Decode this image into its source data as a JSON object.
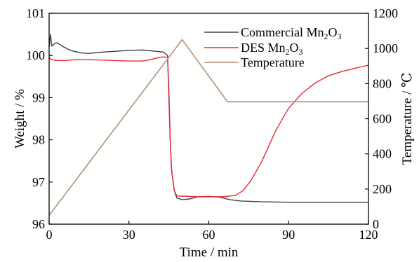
{
  "chart_data": {
    "type": "line",
    "x": {
      "label": "Time / min",
      "range": [
        0,
        120
      ],
      "ticks": [
        0,
        30,
        60,
        90,
        120
      ],
      "tick_labels": [
        "0",
        "30",
        "60",
        "90",
        "120"
      ]
    },
    "y_left": {
      "label": "Weight / %",
      "range": [
        96,
        101
      ],
      "ticks": [
        96,
        97,
        98,
        99,
        100,
        101
      ],
      "tick_labels": [
        "96",
        "97",
        "98",
        "99",
        "100",
        "101"
      ]
    },
    "y_right": {
      "label": "Temperature / ℃",
      "range": [
        0,
        1200
      ],
      "ticks": [
        0,
        200,
        400,
        600,
        800,
        1000,
        1200
      ],
      "tick_labels": [
        "0",
        "200",
        "400",
        "600",
        "800",
        "1000",
        "1200"
      ]
    },
    "legend_position": "top-right",
    "grid": false,
    "series": [
      {
        "name": "Commercial Mn2O3",
        "legend_main": "Commercial Mn",
        "legend_sub1": "2",
        "legend_mid": "O",
        "legend_sub2": "3",
        "axis": "left",
        "color": "#404040",
        "points": [
          [
            0,
            100.2
          ],
          [
            0.5,
            100.5
          ],
          [
            1,
            100.22
          ],
          [
            2,
            100.28
          ],
          [
            3,
            100.3
          ],
          [
            5,
            100.22
          ],
          [
            8,
            100.12
          ],
          [
            12,
            100.06
          ],
          [
            15,
            100.05
          ],
          [
            20,
            100.08
          ],
          [
            25,
            100.1
          ],
          [
            30,
            100.12
          ],
          [
            35,
            100.13
          ],
          [
            40,
            100.1
          ],
          [
            43,
            100.08
          ],
          [
            44.5,
            100.0
          ],
          [
            45,
            99.0
          ],
          [
            45.5,
            98.0
          ],
          [
            46,
            97.3
          ],
          [
            47,
            96.8
          ],
          [
            48,
            96.62
          ],
          [
            50,
            96.58
          ],
          [
            53,
            96.6
          ],
          [
            56,
            96.65
          ],
          [
            60,
            96.66
          ],
          [
            64,
            96.64
          ],
          [
            68,
            96.58
          ],
          [
            72,
            96.55
          ],
          [
            80,
            96.53
          ],
          [
            90,
            96.52
          ],
          [
            100,
            96.52
          ],
          [
            110,
            96.52
          ],
          [
            120,
            96.52
          ]
        ]
      },
      {
        "name": "DES Mn2O3",
        "legend_main": "DES Mn",
        "legend_sub1": "2",
        "legend_mid": "O",
        "legend_sub2": "3",
        "axis": "left",
        "color": "#e8293a",
        "points": [
          [
            0,
            99.95
          ],
          [
            1,
            99.9
          ],
          [
            3,
            99.88
          ],
          [
            6,
            99.88
          ],
          [
            10,
            99.9
          ],
          [
            15,
            99.9
          ],
          [
            20,
            99.89
          ],
          [
            25,
            99.88
          ],
          [
            30,
            99.87
          ],
          [
            35,
            99.87
          ],
          [
            38,
            99.9
          ],
          [
            41,
            99.95
          ],
          [
            43,
            99.97
          ],
          [
            44.5,
            99.95
          ],
          [
            45,
            99.2
          ],
          [
            45.5,
            98.0
          ],
          [
            46,
            97.3
          ],
          [
            47,
            96.8
          ],
          [
            48,
            96.67
          ],
          [
            55,
            96.65
          ],
          [
            65,
            96.65
          ],
          [
            70,
            96.68
          ],
          [
            73,
            96.8
          ],
          [
            76,
            97.05
          ],
          [
            80,
            97.5
          ],
          [
            85,
            98.2
          ],
          [
            90,
            98.75
          ],
          [
            95,
            99.1
          ],
          [
            100,
            99.35
          ],
          [
            105,
            99.52
          ],
          [
            110,
            99.62
          ],
          [
            115,
            99.7
          ],
          [
            120,
            99.77
          ]
        ]
      },
      {
        "name": "Temperature",
        "legend_main": "Temperature",
        "axis": "right",
        "color": "#b89c82",
        "points": [
          [
            0,
            50
          ],
          [
            50,
            1050
          ],
          [
            67,
            697
          ],
          [
            120,
            697
          ]
        ]
      }
    ]
  }
}
